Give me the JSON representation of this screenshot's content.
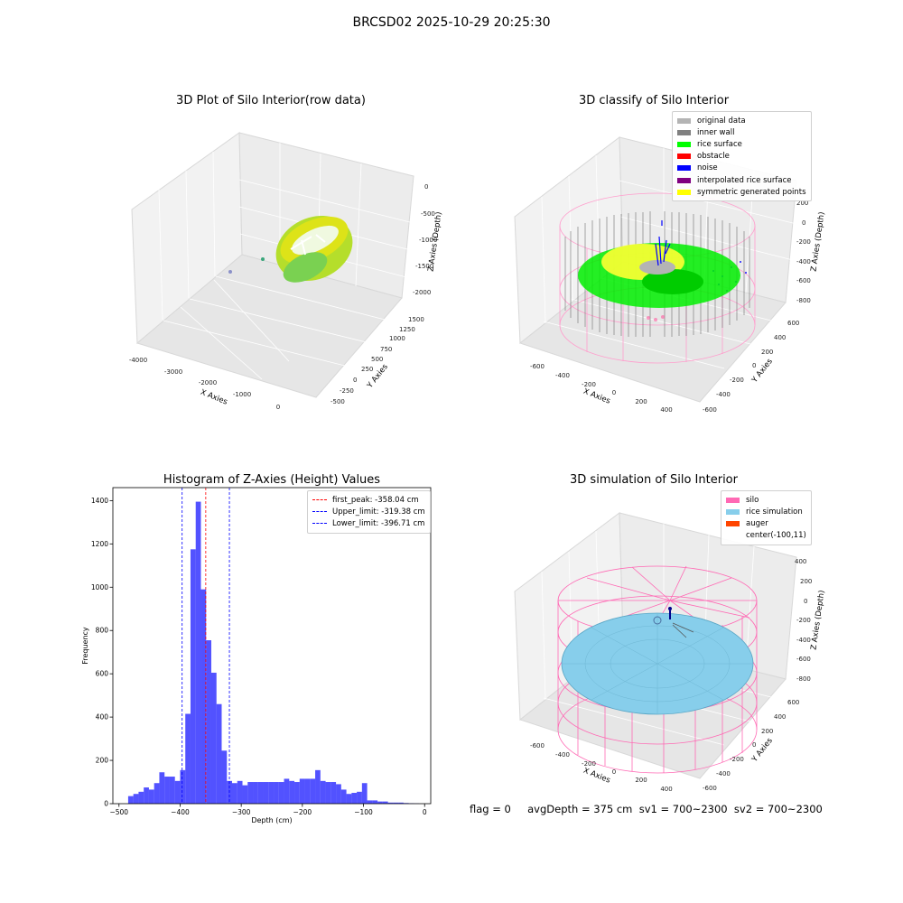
{
  "figure": {
    "title": "BRCSD02 2025-10-29 20:25:30"
  },
  "status": {
    "text": "flag = 0     avgDepth = 375 cm  sv1 = 700~2300  sv2 = 700~2300"
  },
  "chart_data": [
    {
      "type": "scatter3d",
      "title": "3D Plot of Silo Interior(row data)",
      "xlabel": "X Axies",
      "ylabel": "Y Axies",
      "zlabel": "Z Axies (Depth)",
      "x_ticks": [
        "-4000",
        "-3000",
        "-2000",
        "-1000",
        "0"
      ],
      "y_ticks": [
        "1500",
        "1250",
        "1000",
        "750",
        "500",
        "250",
        "0",
        "-250",
        "-500"
      ],
      "z_ticks": [
        "0",
        "-500",
        "-1000",
        "-1500",
        "-2000"
      ],
      "xlim": [
        -4000,
        600
      ],
      "ylim": [
        -600,
        1600
      ],
      "zlim": [
        -2200,
        0
      ],
      "colormap": "viridis",
      "grid": true
    },
    {
      "type": "scatter3d",
      "title": "3D classify of Silo Interior",
      "xlabel": "X Axies",
      "ylabel": "Y Axies",
      "zlabel": "Z Axies (Depth)",
      "x_ticks": [
        "-600",
        "-400",
        "-200",
        "0",
        "200",
        "400"
      ],
      "y_ticks": [
        "600",
        "400",
        "200",
        "0",
        "-200",
        "-400",
        "-600"
      ],
      "z_ticks": [
        "200",
        "0",
        "-200",
        "-400",
        "-600",
        "-800"
      ],
      "legend_position": "top-right",
      "legend": [
        {
          "label": "original data",
          "color": "#b4b4b4"
        },
        {
          "label": "inner wall",
          "color": "#808080"
        },
        {
          "label": "rice surface",
          "color": "#00ff00"
        },
        {
          "label": "obstacle",
          "color": "#ff0000"
        },
        {
          "label": "noise",
          "color": "#0000ff"
        },
        {
          "label": "interpolated rice surface",
          "color": "#800080"
        },
        {
          "label": "symmetric generated points",
          "color": "#ffff00"
        }
      ],
      "grid": true
    },
    {
      "type": "bar",
      "title": "Histogram of Z-Axies (Height) Values",
      "xlabel": "Depth (cm)",
      "ylabel": "Frequency",
      "xlim": [
        -510,
        10
      ],
      "ylim": [
        0,
        1460
      ],
      "x_ticks": [
        "−500",
        "−400",
        "−300",
        "−200",
        "−100",
        "0"
      ],
      "y_ticks": [
        "0",
        "200",
        "400",
        "600",
        "800",
        "1000",
        "1200",
        "1400"
      ],
      "bin_width": 8.5,
      "bin_starts": [
        -485,
        -476.5,
        -468,
        -459.5,
        -451,
        -442.5,
        -434,
        -425.5,
        -417,
        -408.5,
        -400,
        -391.5,
        -383,
        -374.5,
        -366,
        -357.5,
        -349,
        -340.5,
        -332,
        -323.5,
        -315,
        -306.5,
        -298,
        -289.5,
        -281,
        -272.5,
        -264,
        -255.5,
        -247,
        -238.5,
        -230,
        -221.5,
        -213,
        -204.5,
        -196,
        -187.5,
        -179,
        -170.5,
        -162,
        -153.5,
        -145,
        -136.5,
        -128,
        -119.5,
        -111,
        -102.5,
        -94,
        -85.5,
        -77,
        -68.5,
        -60,
        -51.5,
        -43,
        -34.5,
        -26,
        -17.5,
        -9
      ],
      "values": [
        35,
        45,
        55,
        75,
        65,
        95,
        145,
        125,
        125,
        105,
        155,
        415,
        1175,
        1395,
        990,
        755,
        605,
        460,
        245,
        105,
        95,
        105,
        85,
        100,
        100,
        100,
        100,
        100,
        100,
        100,
        115,
        105,
        100,
        115,
        115,
        115,
        155,
        105,
        100,
        100,
        90,
        65,
        45,
        50,
        55,
        95,
        15,
        15,
        10,
        10,
        5,
        5,
        5,
        3,
        2,
        1,
        0
      ],
      "series": [
        {
          "name": "",
          "color": "#0000ff"
        }
      ],
      "vlines": [
        {
          "label": "first_peak: -358.04 cm",
          "x": -358.04,
          "color": "#ff0000"
        },
        {
          "label": "Upper_limit: -319.38 cm",
          "x": -319.38,
          "color": "#0000ff"
        },
        {
          "label": "Lower_limit: -396.71 cm",
          "x": -396.71,
          "color": "#0000ff"
        }
      ],
      "legend_position": "top-right",
      "grid": false
    },
    {
      "type": "surface3d",
      "title": "3D simulation of Silo Interior",
      "xlabel": "X Axies",
      "ylabel": "Y Axies",
      "zlabel": "Z Axies (Depth)",
      "x_ticks": [
        "-600",
        "-400",
        "-200",
        "0",
        "200",
        "400"
      ],
      "y_ticks": [
        "600",
        "400",
        "200",
        "0",
        "-200",
        "-400",
        "-600"
      ],
      "z_ticks": [
        "400",
        "200",
        "0",
        "-200",
        "-400",
        "-600",
        "-800"
      ],
      "legend_position": "top-right",
      "legend": [
        {
          "label": "silo",
          "color": "#ff69b4"
        },
        {
          "label": "rice simulation",
          "color": "#87ceeb"
        },
        {
          "label": "auger",
          "color": "#ff4500"
        },
        {
          "label": "center(-100,11)",
          "color": ""
        }
      ],
      "grid": true
    }
  ]
}
